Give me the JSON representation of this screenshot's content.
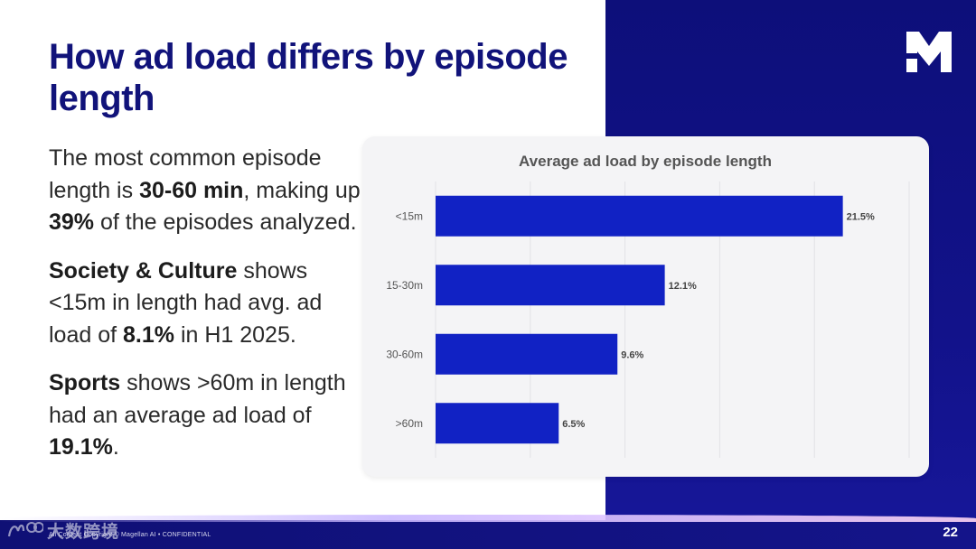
{
  "slide": {
    "title": "How ad load differs by episode length",
    "page_number": "22",
    "footer": "All Content Copyright © Magellan AI • CONFIDENTIAL",
    "watermark": "大数跨境",
    "logo": "Magellan M logo",
    "paragraphs": [
      [
        {
          "t": "The most common episode length is "
        },
        {
          "t": "30-60 min",
          "b": true
        },
        {
          "t": ", making up "
        },
        {
          "t": "39%",
          "b": true
        },
        {
          "t": " of the episodes analyzed."
        }
      ],
      [
        {
          "t": "Society & Culture",
          "b": true
        },
        {
          "t": " shows <15m in length had avg. ad load of "
        },
        {
          "t": "8.1%",
          "b": true
        },
        {
          "t": " in H1 2025."
        }
      ],
      [
        {
          "t": "Sports",
          "b": true
        },
        {
          "t": " shows >60m in length had an average ad load of "
        },
        {
          "t": "19.1%",
          "b": true
        },
        {
          "t": "."
        }
      ]
    ]
  },
  "colors": {
    "title": "#11137a",
    "bar": "#1122c4",
    "panel": "#0d0f7a"
  },
  "chart_data": {
    "type": "bar",
    "orientation": "horizontal",
    "title": "Average ad load by episode length",
    "categories": [
      "<15m",
      "15-30m",
      "30-60m",
      ">60m"
    ],
    "values": [
      21.5,
      12.1,
      9.6,
      6.5
    ],
    "value_labels": [
      "21.5%",
      "12.1%",
      "9.6%",
      "6.5%"
    ],
    "xlim": [
      0,
      25
    ],
    "grid": true,
    "legend": "none"
  }
}
